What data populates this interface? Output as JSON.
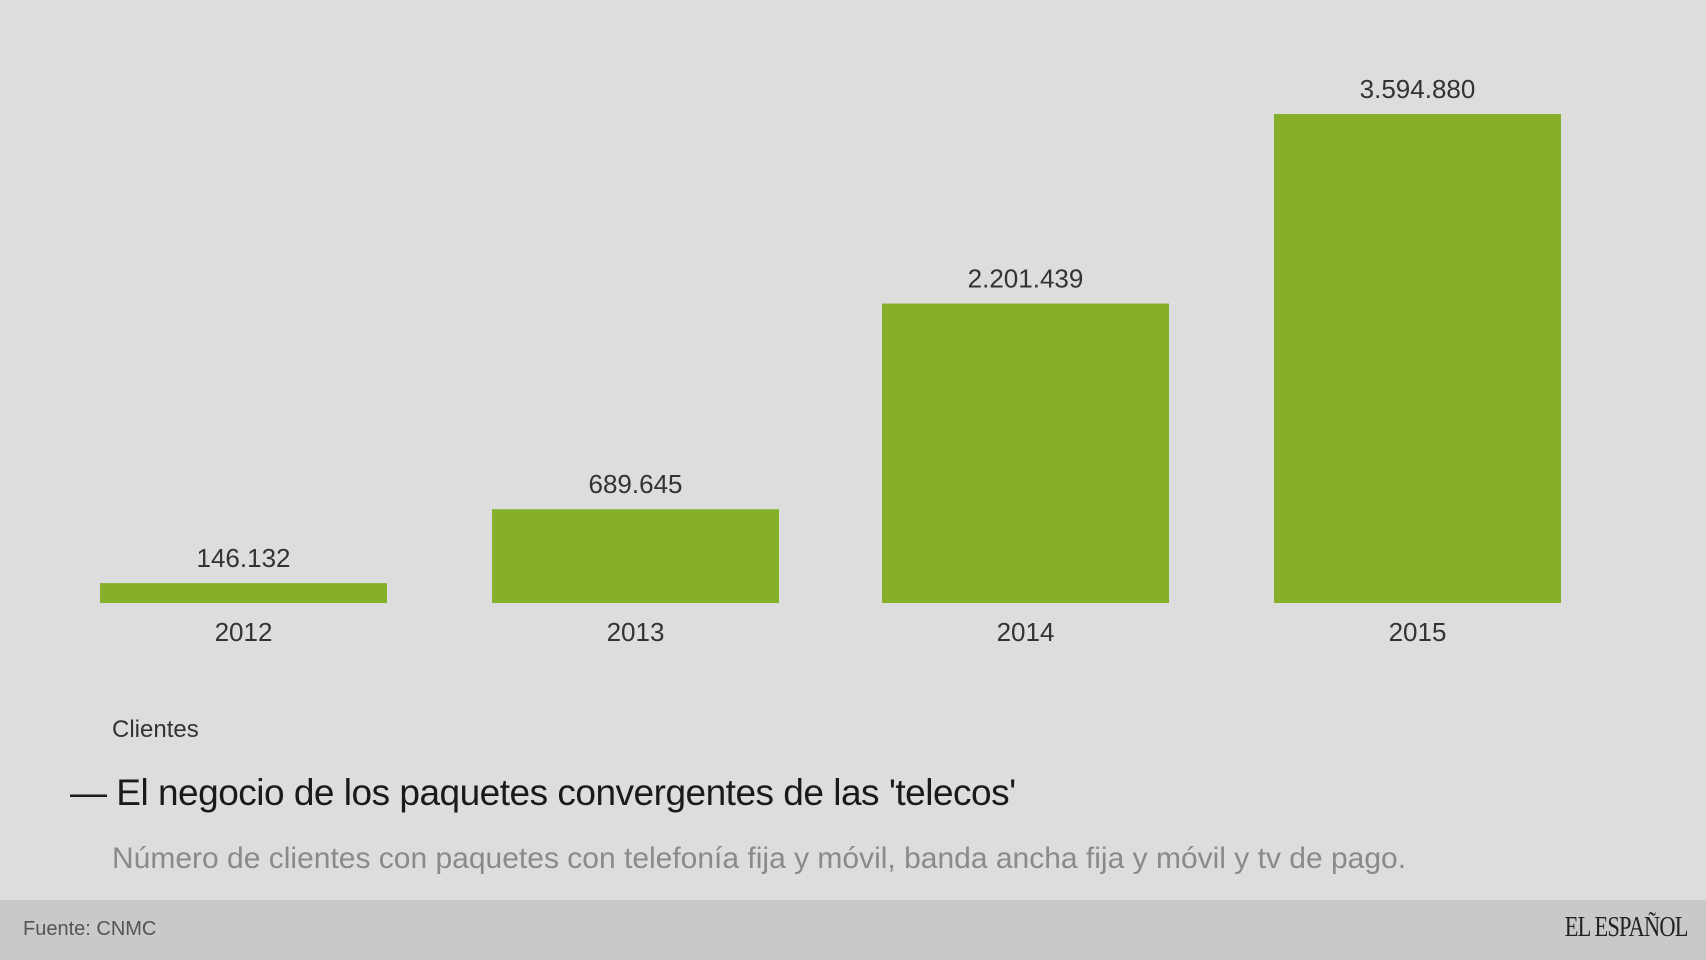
{
  "chart_data": {
    "type": "bar",
    "categories": [
      "2012",
      "2013",
      "2014",
      "2015"
    ],
    "values": [
      146132,
      689645,
      2201439,
      3594880
    ],
    "data_labels": [
      "146.132",
      "689.645",
      "2.201.439",
      "3.594.880"
    ],
    "title": "El negocio de los paquetes convergentes de las 'telecos'",
    "subtitle": "Número de clientes con paquetes con telefonía fija y móvil, banda ancha fija y móvil y tv de pago.",
    "series_label": "Clientes",
    "ylim": [
      0,
      3594880
    ],
    "grid": false,
    "bar_color": "#86b02a"
  },
  "legend": {
    "label": "Clientes",
    "marker": "— "
  },
  "footer": {
    "source": "Fuente: CNMC",
    "logo": "EL ESPAÑOL"
  },
  "colors": {
    "background": "#dddddd",
    "footer": "#c9c9c9",
    "bar": "#86b02a"
  }
}
